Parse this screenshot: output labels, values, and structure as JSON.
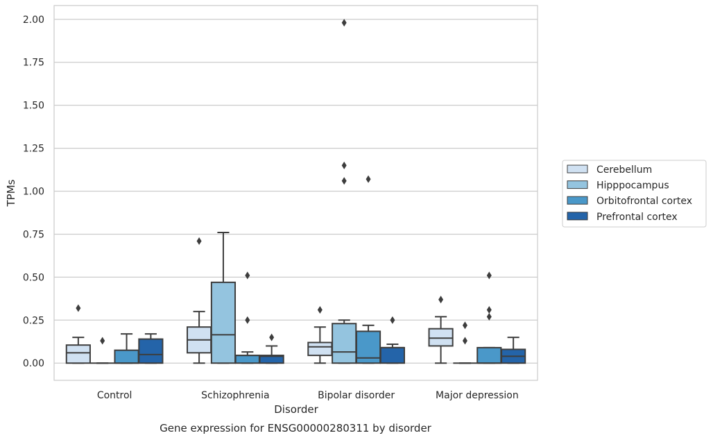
{
  "chart_data": {
    "type": "box",
    "title": "Gene expression for ENSG00000280311 by disorder",
    "xlabel": "Disorder",
    "ylabel": "TPMs",
    "ylim": [
      -0.1,
      2.08
    ],
    "yticks": [
      "0.00",
      "0.25",
      "0.50",
      "0.75",
      "1.00",
      "1.25",
      "1.50",
      "1.75",
      "2.00"
    ],
    "grid": true,
    "legend_position": "right",
    "categories": [
      "Control",
      "Schizophrenia",
      "Bipolar disorder",
      "Major depression"
    ],
    "series": [
      {
        "name": "Cerebellum",
        "color": "#d0e1f2",
        "boxes": [
          {
            "whisker_low": 0.0,
            "q1": 0.0,
            "median": 0.06,
            "q3": 0.105,
            "whisker_high": 0.15,
            "outliers": [
              0.32
            ]
          },
          {
            "whisker_low": 0.0,
            "q1": 0.06,
            "median": 0.135,
            "q3": 0.21,
            "whisker_high": 0.3,
            "outliers": [
              0.71
            ]
          },
          {
            "whisker_low": 0.0,
            "q1": 0.045,
            "median": 0.095,
            "q3": 0.12,
            "whisker_high": 0.21,
            "outliers": [
              0.31
            ]
          },
          {
            "whisker_low": 0.0,
            "q1": 0.1,
            "median": 0.145,
            "q3": 0.2,
            "whisker_high": 0.27,
            "outliers": [
              0.37
            ]
          }
        ]
      },
      {
        "name": "Hipppocampus",
        "color": "#94c4df",
        "boxes": [
          {
            "whisker_low": 0.0,
            "q1": 0.0,
            "median": 0.0,
            "q3": 0.0,
            "whisker_high": 0.0,
            "outliers": [
              0.13
            ]
          },
          {
            "whisker_low": 0.0,
            "q1": 0.0,
            "median": 0.165,
            "q3": 0.47,
            "whisker_high": 0.76,
            "outliers": []
          },
          {
            "whisker_low": 0.0,
            "q1": 0.0,
            "median": 0.065,
            "q3": 0.23,
            "whisker_high": 0.25,
            "outliers": [
              1.98,
              1.15,
              1.06
            ]
          },
          {
            "whisker_low": 0.0,
            "q1": 0.0,
            "median": 0.0,
            "q3": 0.0,
            "whisker_high": 0.0,
            "outliers": [
              0.22,
              0.13
            ]
          }
        ]
      },
      {
        "name": "Orbitofrontal cortex",
        "color": "#4a98c9",
        "boxes": [
          {
            "whisker_low": 0.0,
            "q1": 0.0,
            "median": 0.0,
            "q3": 0.075,
            "whisker_high": 0.17,
            "outliers": []
          },
          {
            "whisker_low": 0.0,
            "q1": 0.0,
            "median": 0.045,
            "q3": 0.045,
            "whisker_high": 0.065,
            "outliers": [
              0.51,
              0.25
            ]
          },
          {
            "whisker_low": 0.0,
            "q1": 0.0,
            "median": 0.03,
            "q3": 0.185,
            "whisker_high": 0.22,
            "outliers": [
              1.07
            ]
          },
          {
            "whisker_low": 0.0,
            "q1": 0.0,
            "median": 0.0,
            "q3": 0.09,
            "whisker_high": 0.09,
            "outliers": [
              0.51,
              0.31,
              0.27
            ]
          }
        ]
      },
      {
        "name": "Prefrontal cortex",
        "color": "#2464a9",
        "boxes": [
          {
            "whisker_low": 0.0,
            "q1": 0.0,
            "median": 0.05,
            "q3": 0.14,
            "whisker_high": 0.17,
            "outliers": []
          },
          {
            "whisker_low": 0.0,
            "q1": 0.0,
            "median": 0.04,
            "q3": 0.045,
            "whisker_high": 0.1,
            "outliers": [
              0.15
            ]
          },
          {
            "whisker_low": 0.0,
            "q1": 0.0,
            "median": 0.09,
            "q3": 0.09,
            "whisker_high": 0.11,
            "outliers": [
              0.25
            ]
          },
          {
            "whisker_low": 0.0,
            "q1": 0.0,
            "median": 0.04,
            "q3": 0.08,
            "whisker_high": 0.15,
            "outliers": []
          }
        ]
      }
    ]
  }
}
